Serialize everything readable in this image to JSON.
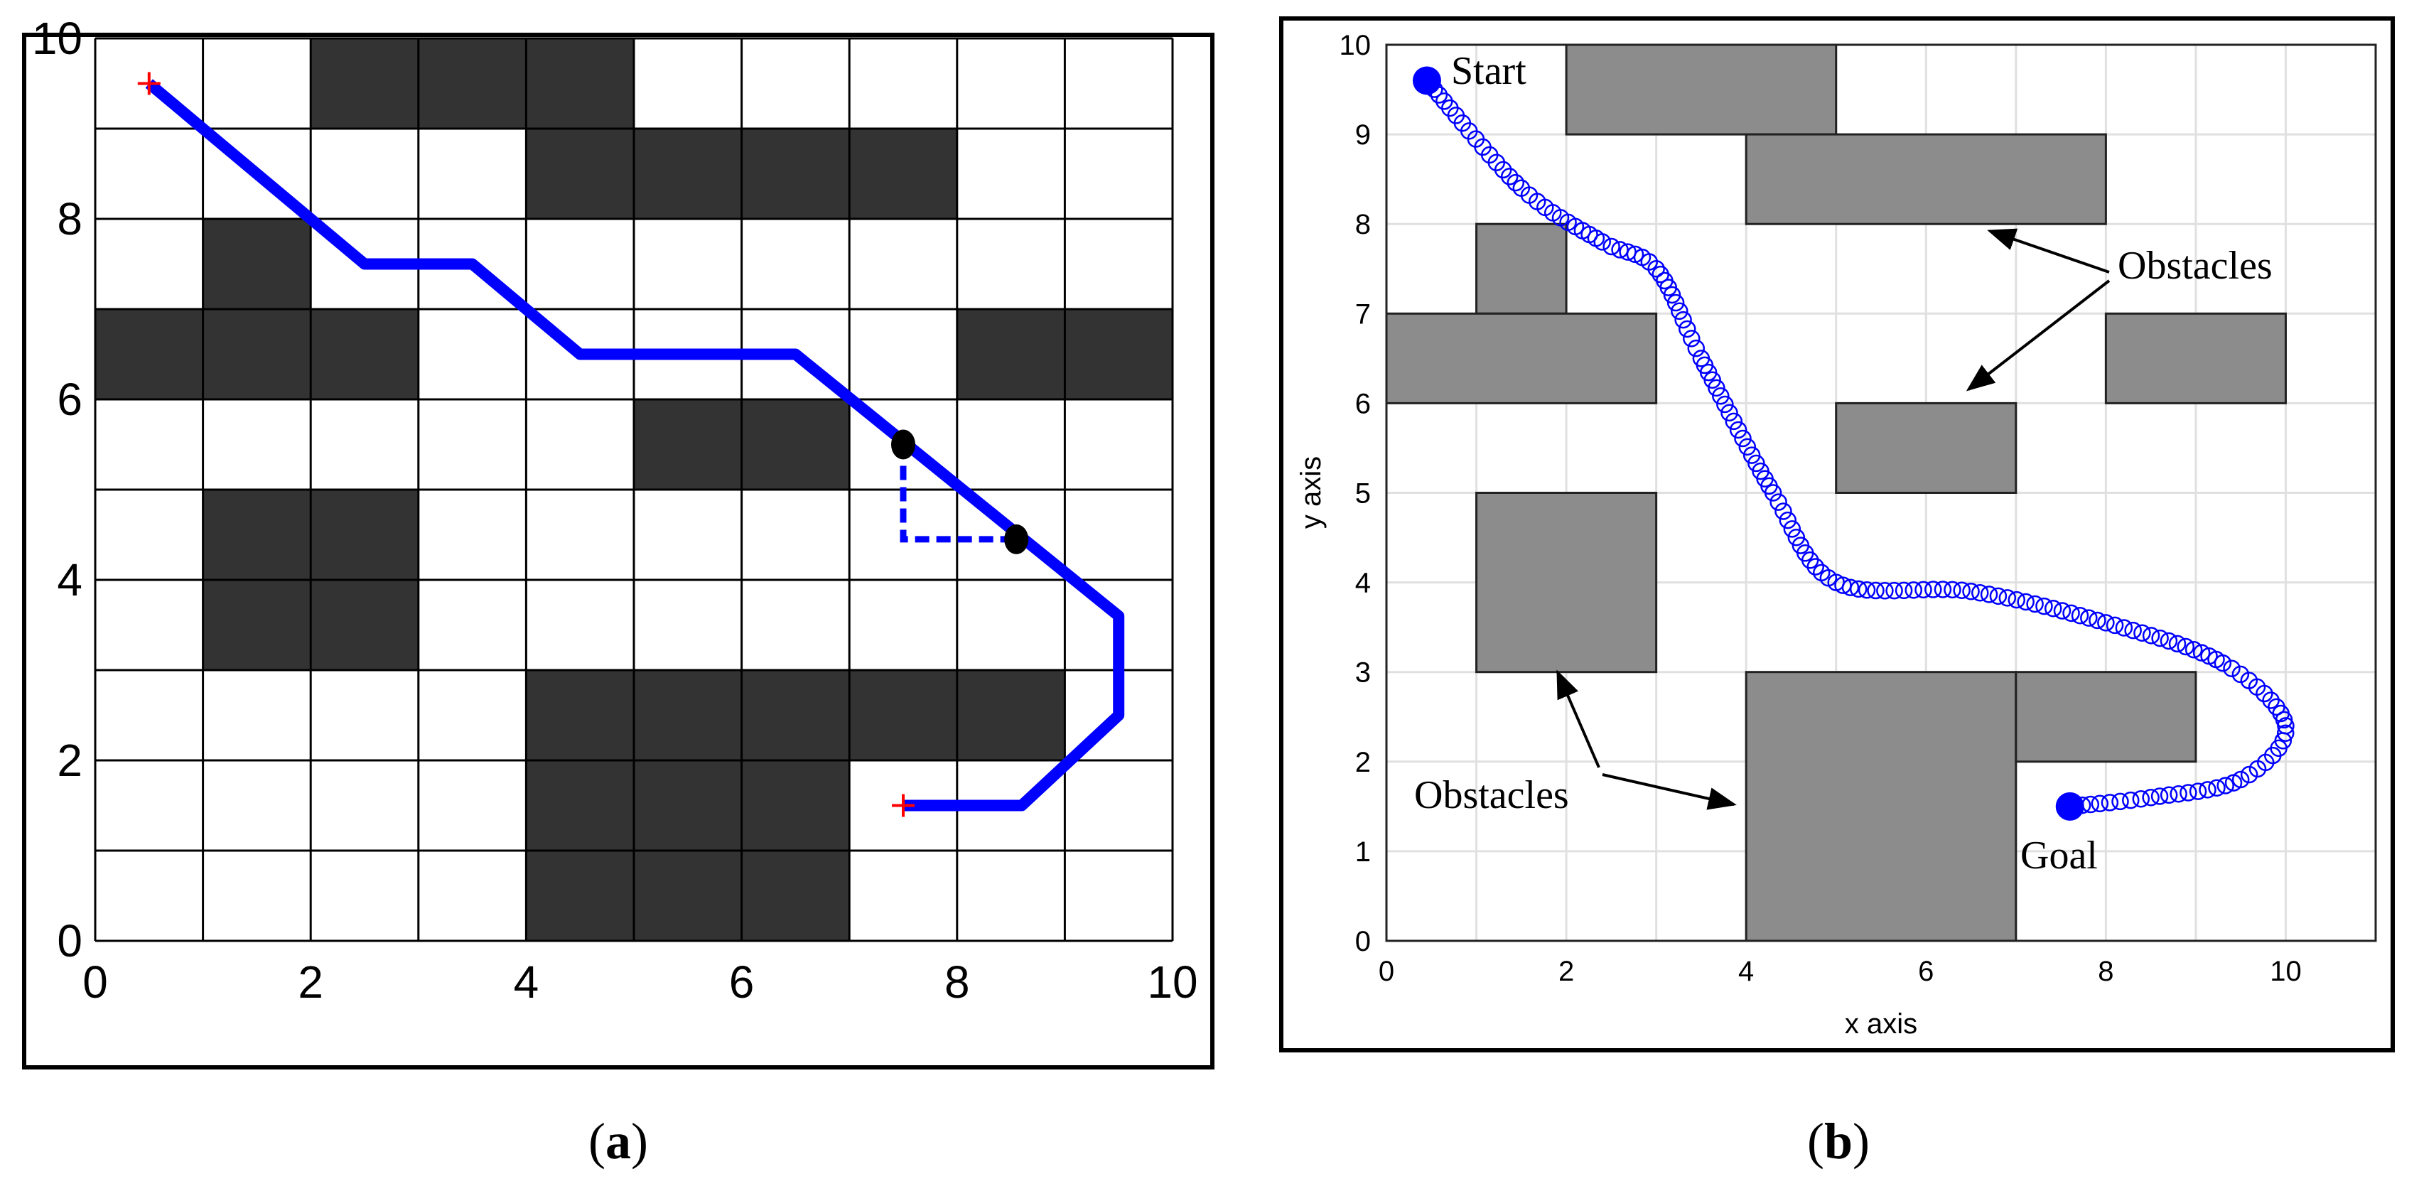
{
  "panels": {
    "a": {
      "caption_letter": "a",
      "x_ticks": [
        "0",
        "2",
        "4",
        "6",
        "8",
        "10"
      ],
      "y_ticks": [
        "0",
        "2",
        "4",
        "6",
        "8",
        "10"
      ],
      "axis_range": [
        0,
        10
      ],
      "blocked_cells": [
        [
          2,
          9
        ],
        [
          3,
          9
        ],
        [
          4,
          9
        ],
        [
          4,
          8
        ],
        [
          5,
          8
        ],
        [
          6,
          8
        ],
        [
          7,
          8
        ],
        [
          1,
          7
        ],
        [
          0,
          6
        ],
        [
          1,
          6
        ],
        [
          2,
          6
        ],
        [
          8,
          6
        ],
        [
          9,
          6
        ],
        [
          5,
          5
        ],
        [
          6,
          5
        ],
        [
          1,
          4
        ],
        [
          2,
          4
        ],
        [
          1,
          3
        ],
        [
          2,
          3
        ],
        [
          4,
          2
        ],
        [
          5,
          2
        ],
        [
          6,
          2
        ],
        [
          7,
          2
        ],
        [
          8,
          2
        ],
        [
          4,
          1
        ],
        [
          5,
          1
        ],
        [
          6,
          1
        ],
        [
          4,
          0
        ],
        [
          5,
          0
        ],
        [
          6,
          0
        ]
      ],
      "path": [
        [
          0.5,
          9.5
        ],
        [
          2.5,
          7.5
        ],
        [
          3.5,
          7.5
        ],
        [
          4.5,
          6.5
        ],
        [
          6.5,
          6.5
        ],
        [
          9.5,
          3.6
        ],
        [
          9.5,
          2.5
        ],
        [
          8.6,
          1.5
        ],
        [
          7.5,
          1.5
        ]
      ],
      "dashed_path": [
        [
          7.5,
          5.5
        ],
        [
          7.5,
          4.45
        ],
        [
          8.55,
          4.45
        ]
      ],
      "waypoints": [
        [
          7.5,
          5.5
        ],
        [
          8.55,
          4.45
        ]
      ],
      "start_marker": [
        0.5,
        9.5
      ],
      "goal_marker": [
        7.5,
        1.5
      ],
      "colors": {
        "obstacle": "#333333",
        "path": "#0000ff",
        "marker": "#ff0000",
        "grid": "#000000"
      }
    },
    "b": {
      "caption_letter": "b",
      "xlabel": "x axis",
      "ylabel": "y axis",
      "x_ticks": [
        "0",
        "2",
        "4",
        "6",
        "8",
        "10"
      ],
      "y_ticks": [
        "0",
        "1",
        "2",
        "3",
        "4",
        "5",
        "6",
        "7",
        "8",
        "9",
        "10"
      ],
      "xlim": [
        0,
        11
      ],
      "ylim": [
        0,
        10
      ],
      "obstacles": [
        [
          2,
          9,
          3,
          1
        ],
        [
          4,
          8,
          4,
          1
        ],
        [
          1,
          7,
          1,
          1
        ],
        [
          0,
          6,
          3,
          1
        ],
        [
          8,
          6,
          2,
          1
        ],
        [
          5,
          5,
          2,
          1
        ],
        [
          1,
          3,
          2,
          2
        ],
        [
          4,
          0,
          3,
          3
        ],
        [
          7,
          2,
          2,
          1
        ]
      ],
      "trajectory": [
        [
          0.45,
          9.6
        ],
        [
          1.5,
          8.4
        ],
        [
          2.4,
          7.8
        ],
        [
          3.0,
          7.5
        ],
        [
          3.5,
          6.5
        ],
        [
          4.3,
          5.0
        ],
        [
          5.0,
          4.0
        ],
        [
          6.5,
          3.9
        ],
        [
          8.0,
          3.55
        ],
        [
          9.3,
          3.1
        ],
        [
          10.0,
          2.4
        ],
        [
          9.5,
          1.8
        ],
        [
          8.5,
          1.6
        ],
        [
          7.6,
          1.5
        ]
      ],
      "start_point": [
        0.45,
        9.6
      ],
      "goal_point": [
        7.6,
        1.5
      ],
      "labels": {
        "start": "Start",
        "goal": "Goal",
        "obstacles_top": "Obstacles",
        "obstacles_bottom": "Obstacles"
      },
      "colors": {
        "obstacle": "#8c8c8c",
        "trajectory": "#0000ff",
        "grid": "#e0e0e0"
      }
    }
  }
}
